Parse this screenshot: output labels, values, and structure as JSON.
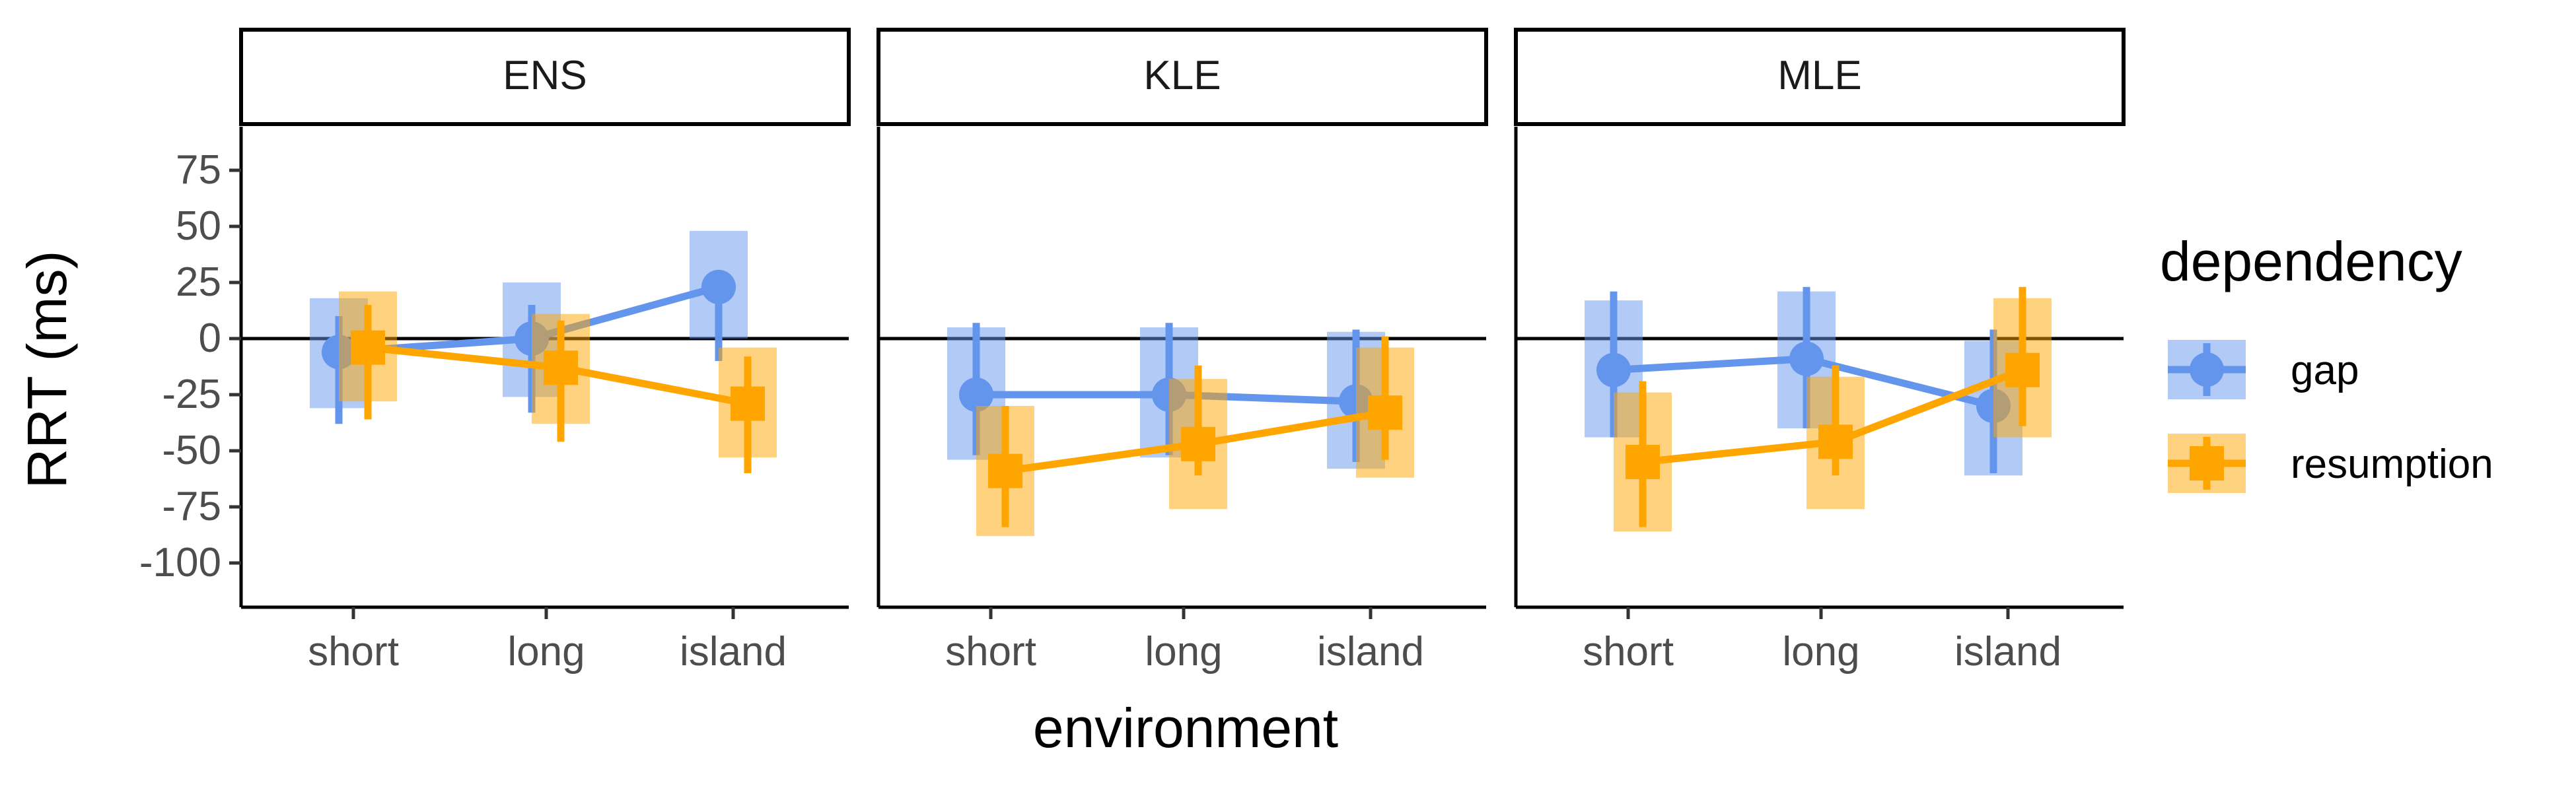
{
  "chart_data": {
    "type": "line",
    "xlabel": "environment",
    "ylabel": "RRT (ms)",
    "categories": [
      "short",
      "long",
      "island"
    ],
    "yticks": [
      75,
      50,
      25,
      0,
      -25,
      -50,
      -75,
      -100
    ],
    "ylim": [
      -120,
      95
    ],
    "grid": false,
    "reference_line": 0,
    "legend": {
      "title": "dependency",
      "position": "right",
      "entries": [
        "gap",
        "resumption"
      ]
    },
    "colors": {
      "gap": "#6495ED",
      "resumption": "#FFA500"
    },
    "panels": [
      {
        "title": "ENS",
        "series": [
          {
            "name": "gap",
            "values": [
              -6,
              0,
              23
            ],
            "err_low": [
              -38,
              -33,
              -10
            ],
            "err_high": [
              10,
              15,
              30
            ],
            "band_low": [
              -31,
              -26,
              0
            ],
            "band_high": [
              18,
              25,
              48
            ]
          },
          {
            "name": "resumption",
            "values": [
              -4,
              -13,
              -29
            ],
            "err_low": [
              -36,
              -46,
              -60
            ],
            "err_high": [
              15,
              8,
              -8
            ],
            "band_low": [
              -28,
              -38,
              -53
            ],
            "band_high": [
              21,
              11,
              -4
            ]
          }
        ]
      },
      {
        "title": "KLE",
        "series": [
          {
            "name": "gap",
            "values": [
              -25,
              -25,
              -28
            ],
            "err_low": [
              -52,
              -52,
              -55
            ],
            "err_high": [
              7,
              7,
              4
            ],
            "band_low": [
              -54,
              -53,
              -58
            ],
            "band_high": [
              5,
              5,
              3
            ]
          },
          {
            "name": "resumption",
            "values": [
              -59,
              -47,
              -33
            ],
            "err_low": [
              -84,
              -61,
              -54
            ],
            "err_high": [
              -30,
              -12,
              1
            ],
            "band_low": [
              -88,
              -76,
              -62
            ],
            "band_high": [
              -30,
              -18,
              -4
            ]
          }
        ]
      },
      {
        "title": "MLE",
        "series": [
          {
            "name": "gap",
            "values": [
              -14,
              -9,
              -30
            ],
            "err_low": [
              -44,
              -40,
              -60
            ],
            "err_high": [
              21,
              23,
              4
            ],
            "band_low": [
              -44,
              -40,
              -61
            ],
            "band_high": [
              17,
              21,
              -1
            ]
          },
          {
            "name": "resumption",
            "values": [
              -55,
              -46,
              -14
            ],
            "err_low": [
              -84,
              -61,
              -39
            ],
            "err_high": [
              -19,
              -12,
              23
            ],
            "band_low": [
              -86,
              -76,
              -44
            ],
            "band_high": [
              -24,
              -17,
              18
            ]
          }
        ]
      }
    ]
  }
}
